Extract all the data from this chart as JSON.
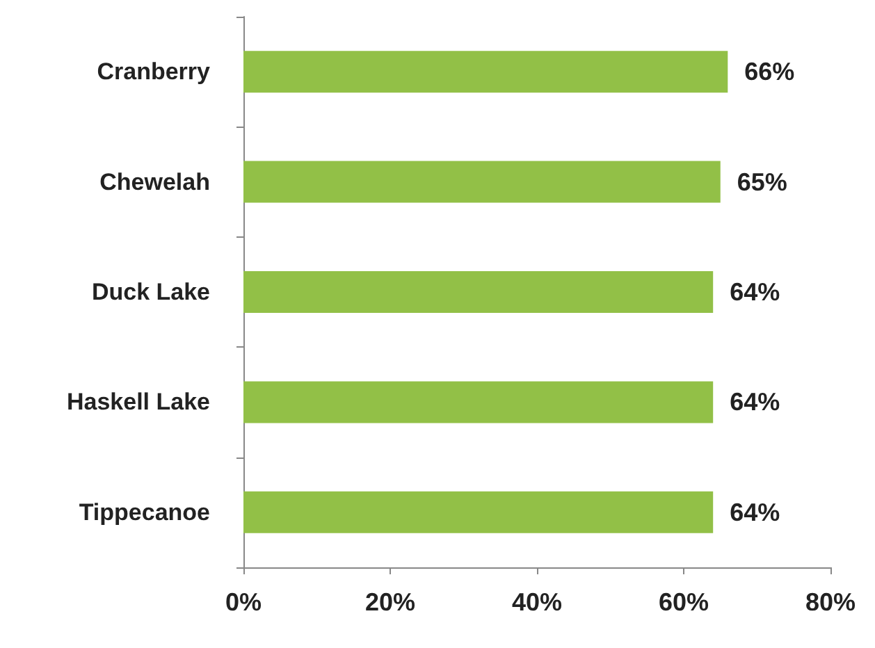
{
  "chart_data": {
    "type": "bar",
    "orientation": "horizontal",
    "categories": [
      "Cranberry",
      "Chewelah",
      "Duck Lake",
      "Haskell Lake",
      "Tippecanoe"
    ],
    "values": [
      66,
      65,
      64,
      64,
      64
    ],
    "value_labels": [
      "66%",
      "65%",
      "64%",
      "64%",
      "64%"
    ],
    "color": "#92c047",
    "xlim": [
      0,
      80
    ],
    "xticks": [
      {
        "value": 0,
        "label": "0%"
      },
      {
        "value": 20,
        "label": "20%"
      },
      {
        "value": 40,
        "label": "40%"
      },
      {
        "value": 60,
        "label": "60%"
      },
      {
        "value": 80,
        "label": "80%"
      }
    ],
    "grid": false
  }
}
